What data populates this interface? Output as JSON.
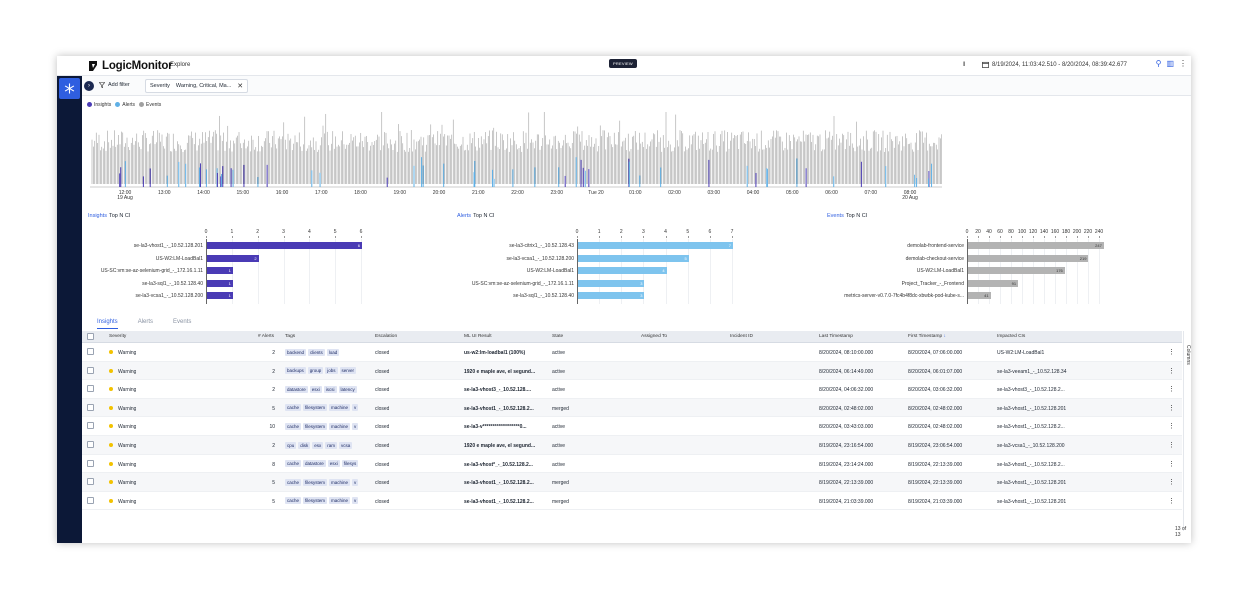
{
  "header": {
    "brand": "LogicMonitor",
    "crumb": "Explore",
    "preview_badge": "PREVIEW",
    "time_range": "8/19/2024, 11:03:42.510 - 8/20/2024, 08:39:42.677",
    "pause_glyph": "II"
  },
  "filter_bar": {
    "add_filter_label": "Add filter",
    "chip_key": "Severity",
    "chip_value": "Warning, Critical, Ma..."
  },
  "legend": [
    {
      "label": "Insights",
      "color": "#4a3bb5"
    },
    {
      "label": "Alerts",
      "color": "#5fb0e6"
    },
    {
      "label": "Events",
      "color": "#a0a0a0"
    }
  ],
  "timeline": {
    "labels": [
      {
        "t": "12:00",
        "sub": "19 Aug"
      },
      {
        "t": "13:00",
        "sub": ""
      },
      {
        "t": "14:00",
        "sub": ""
      },
      {
        "t": "15:00",
        "sub": ""
      },
      {
        "t": "16:00",
        "sub": ""
      },
      {
        "t": "17:00",
        "sub": ""
      },
      {
        "t": "18:00",
        "sub": ""
      },
      {
        "t": "19:00",
        "sub": ""
      },
      {
        "t": "20:00",
        "sub": ""
      },
      {
        "t": "21:00",
        "sub": ""
      },
      {
        "t": "22:00",
        "sub": ""
      },
      {
        "t": "23:00",
        "sub": ""
      },
      {
        "t": "Tue 20",
        "sub": ""
      },
      {
        "t": "01:00",
        "sub": ""
      },
      {
        "t": "02:00",
        "sub": ""
      },
      {
        "t": "03:00",
        "sub": ""
      },
      {
        "t": "04:00",
        "sub": ""
      },
      {
        "t": "05:00",
        "sub": ""
      },
      {
        "t": "06:00",
        "sub": ""
      },
      {
        "t": "07:00",
        "sub": ""
      },
      {
        "t": "08:00",
        "sub": "20 Aug"
      }
    ]
  },
  "topn": {
    "insights": {
      "title": "Insights",
      "suffix": "Top N CI",
      "ticks": [
        "0",
        "1",
        "2",
        "3",
        "4",
        "5",
        "6"
      ],
      "rows": [
        {
          "label": "se-la3-vhost1_-_10.52.128.201",
          "value": 6
        },
        {
          "label": "US-W2:LM-LoadBal1",
          "value": 2
        },
        {
          "label": "US-SC:vm:se-az-selenium-grid_-_172.16.1.11",
          "value": 1
        },
        {
          "label": "se-la3-sql1_-_10.52.128.40",
          "value": 1
        },
        {
          "label": "se-la3-vcsa1_-_10.52.128.200",
          "value": 1
        }
      ],
      "max": 6,
      "color": "#4a3bb5"
    },
    "alerts": {
      "title": "Alerts",
      "suffix": "Top N CI",
      "ticks": [
        "0",
        "1",
        "2",
        "3",
        "4",
        "5",
        "6",
        "7"
      ],
      "rows": [
        {
          "label": "se-la3-citrix1_-_10.52.128.43",
          "value": 7
        },
        {
          "label": "se-la3-vcsa1_-_10.52.128.200",
          "value": 5
        },
        {
          "label": "US-W2:LM-LoadBal1",
          "value": 4
        },
        {
          "label": "US-SC:vm:se-az-selenium-grid_-_172.16.1.11",
          "value": 3
        },
        {
          "label": "se-la3-sql1_-_10.52.128.40",
          "value": 3
        }
      ],
      "max": 7,
      "color": "#7ec4ee"
    },
    "events": {
      "title": "Events",
      "suffix": "Top N CI",
      "ticks": [
        "0",
        "20",
        "40",
        "60",
        "80",
        "100",
        "120",
        "140",
        "160",
        "180",
        "200",
        "220",
        "240"
      ],
      "rows": [
        {
          "label": "demolab-frontend-service",
          "value": 247
        },
        {
          "label": "demolab-checkout-service",
          "value": 219
        },
        {
          "label": "US-W2:LM-LoadBal1",
          "value": 176
        },
        {
          "label": "Project_Tracker_-_Frontend",
          "value": 91
        },
        {
          "label": "metrics-server-v0.7.0-7fc4b4f8dc-xbwbk-pod-kube-s...",
          "value": 41
        }
      ],
      "max": 240,
      "color": "#b3b3b3"
    }
  },
  "tabs": [
    "Insights",
    "Alerts",
    "Events"
  ],
  "table": {
    "columns": [
      "Severity",
      "# Alerts",
      "Tags",
      "Escalation",
      "ML UI Result",
      "State",
      "Assigned To",
      "Incident ID",
      "Last Timestamp",
      "First Timestamp",
      "Impacted CIs"
    ],
    "first_timestamp_sort": "↓",
    "rows": [
      {
        "severity": "Warning",
        "alerts": "2",
        "tags": [
          "backend",
          "clients",
          "load"
        ],
        "escalation": "closed",
        "ml": "us-w2:lm-loadbal1 (100%)",
        "state": "active",
        "last": "8/20/2024, 08:10:00.000",
        "first": "8/20/2024, 07:06:00.000",
        "ci": "US-W2:LM-LoadBal1"
      },
      {
        "severity": "Warning",
        "alerts": "2",
        "tags": [
          "backups",
          "group",
          "jobs",
          "server"
        ],
        "escalation": "closed",
        "ml": "1920 e maple ave, el segund...",
        "state": "active",
        "last": "8/20/2024, 06:14:49.000",
        "first": "8/20/2024, 06:01:07.000",
        "ci": "se-la3-veeam1_-_10.52.128.34"
      },
      {
        "severity": "Warning",
        "alerts": "2",
        "tags": [
          "datastore",
          "esxi",
          "iscsi",
          "latency"
        ],
        "escalation": "closed",
        "ml": "se-la3-vhost3_-_10.52.128....",
        "state": "active",
        "last": "8/20/2024, 04:06:32.000",
        "first": "8/20/2024, 03:06:32.000",
        "ci": "se-la3-vhost3_-_10.52.128.2..."
      },
      {
        "severity": "Warning",
        "alerts": "5",
        "tags": [
          "cache",
          "filesystem",
          "machine",
          "v"
        ],
        "escalation": "closed",
        "ml": "se-la3-vhost1_-_10.52.128.2...",
        "state": "merged",
        "last": "8/20/2024, 02:48:02.000",
        "first": "8/20/2024, 02:48:02.000",
        "ci": "se-la3-vhost1_-_10.52.128.201"
      },
      {
        "severity": "Warning",
        "alerts": "10",
        "tags": [
          "cache",
          "filesystem",
          "machine",
          "v"
        ],
        "escalation": "closed",
        "ml": "se-la3-v*******************0...",
        "state": "active",
        "last": "8/20/2024, 03:43:03.000",
        "first": "8/20/2024, 02:48:02.000",
        "ci": "se-la3-vhost1_-_10.52.128.2..."
      },
      {
        "severity": "Warning",
        "alerts": "2",
        "tags": [
          "cpu",
          "disk",
          "esx",
          "ram",
          "vcsa"
        ],
        "escalation": "closed",
        "ml": "1920 e maple ave, el segund...",
        "state": "active",
        "last": "8/19/2024, 23:16:54.000",
        "first": "8/19/2024, 23:06:54.000",
        "ci": "se-la3-vcsa1_-_10.52.128.200"
      },
      {
        "severity": "Warning",
        "alerts": "8",
        "tags": [
          "cache",
          "datastore",
          "esxi",
          "filesys"
        ],
        "escalation": "closed",
        "ml": "se-la3-vhost*_-_10.52.128.2...",
        "state": "active",
        "last": "8/19/2024, 23:14:24.000",
        "first": "8/19/2024, 22:13:39.000",
        "ci": "se-la3-vhost1_-_10.52.128.2..."
      },
      {
        "severity": "Warning",
        "alerts": "5",
        "tags": [
          "cache",
          "filesystem",
          "machine",
          "v"
        ],
        "escalation": "closed",
        "ml": "se-la3-vhost1_-_10.52.128.2...",
        "state": "merged",
        "last": "8/19/2024, 22:13:39.000",
        "first": "8/19/2024, 22:13:39.000",
        "ci": "se-la3-vhost1_-_10.52.128.201"
      },
      {
        "severity": "Warning",
        "alerts": "5",
        "tags": [
          "cache",
          "filesystem",
          "machine",
          "v"
        ],
        "escalation": "closed",
        "ml": "se-la3-vhost1_-_10.52.128.2...",
        "state": "merged",
        "last": "8/19/2024, 21:03:39.000",
        "first": "8/19/2024, 21:03:39.000",
        "ci": "se-la3-vhost1_-_10.52.128.201"
      }
    ],
    "pager": "13 of 13",
    "columns_panel_label": "Columns"
  }
}
